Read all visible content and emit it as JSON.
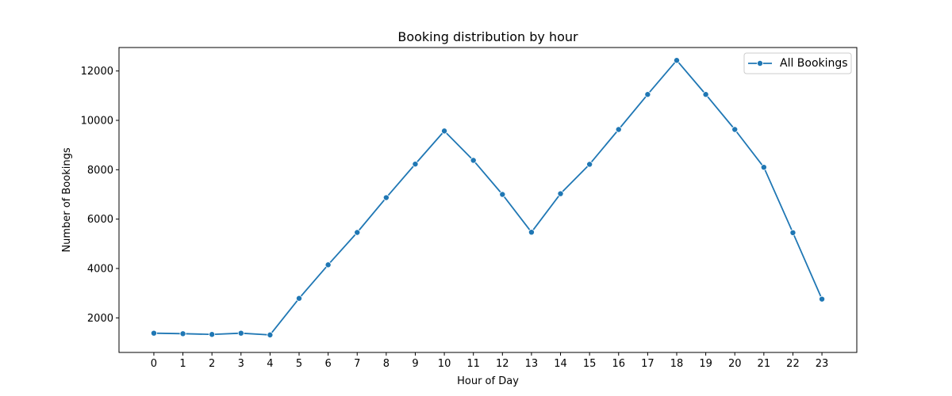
{
  "chart_data": {
    "type": "line",
    "title": "Booking distribution by hour",
    "xlabel": "Hour of Day",
    "ylabel": "Number of Bookings",
    "xlim": [
      -1.2,
      24.2
    ],
    "ylim": [
      600,
      12950
    ],
    "x": [
      0,
      1,
      2,
      3,
      4,
      5,
      6,
      7,
      8,
      9,
      10,
      11,
      12,
      13,
      14,
      15,
      16,
      17,
      18,
      19,
      20,
      21,
      22,
      23
    ],
    "x_ticks": [
      "0",
      "1",
      "2",
      "3",
      "4",
      "5",
      "6",
      "7",
      "8",
      "9",
      "10",
      "11",
      "12",
      "13",
      "14",
      "15",
      "16",
      "17",
      "18",
      "19",
      "20",
      "21",
      "22",
      "23"
    ],
    "y_ticks": [
      2000,
      4000,
      6000,
      8000,
      10000,
      12000
    ],
    "y_tick_labels": [
      "2000",
      "4000",
      "6000",
      "8000",
      "10000",
      "12000"
    ],
    "grid": false,
    "legend": "upper-right",
    "series": [
      {
        "name": "All Bookings",
        "color": "#1f77b4",
        "values": [
          1380,
          1360,
          1330,
          1380,
          1310,
          2790,
          4150,
          5460,
          6870,
          8230,
          9570,
          8380,
          7000,
          5470,
          7030,
          8220,
          9630,
          11050,
          12430,
          11050,
          9630,
          8100,
          5450,
          2760
        ]
      }
    ]
  }
}
